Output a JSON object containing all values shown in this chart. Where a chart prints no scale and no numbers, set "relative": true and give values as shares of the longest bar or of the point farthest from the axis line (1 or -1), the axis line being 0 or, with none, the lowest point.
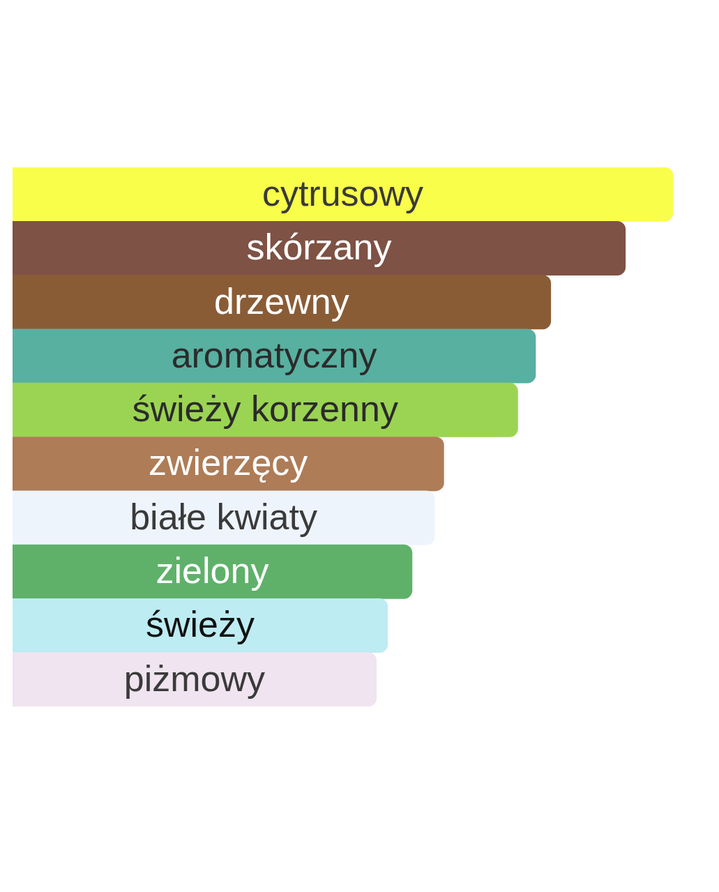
{
  "chart_data": {
    "type": "bar",
    "orientation": "horizontal",
    "relative": true,
    "categories": [
      "cytrusowy",
      "skórzany",
      "drzewny",
      "aromatyczny",
      "świeży korzenny",
      "zwierzęcy",
      "białe kwiaty",
      "zielony",
      "świeży",
      "piżmowy"
    ],
    "values": [
      1,
      0.928,
      0.815,
      0.792,
      0.765,
      0.653,
      0.639,
      0.605,
      0.568,
      0.551
    ],
    "colors": [
      "#f9fe4a",
      "#7e5244",
      "#8a5c36",
      "#58b0a0",
      "#9bd452",
      "#ae7c56",
      "#eef4fc",
      "#5fb16a",
      "#bdecf2",
      "#efe4ef"
    ]
  }
}
